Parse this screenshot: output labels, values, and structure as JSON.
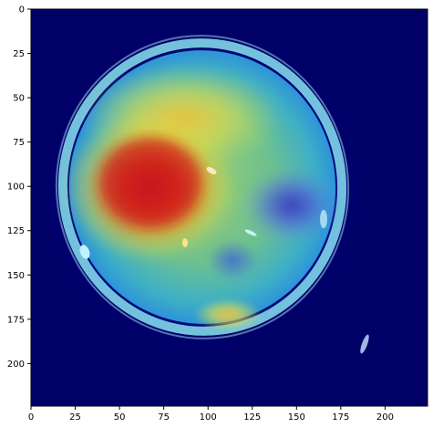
{
  "chart_data": {
    "type": "heatmap",
    "title": "",
    "xlabel": "",
    "ylabel": "",
    "xlim": [
      0,
      224
    ],
    "ylim": [
      224,
      0
    ],
    "x_ticks": [
      "0",
      "25",
      "50",
      "75",
      "100",
      "125",
      "150",
      "175",
      "200"
    ],
    "y_ticks": [
      "0",
      "25",
      "50",
      "75",
      "100",
      "125",
      "150",
      "175",
      "200"
    ],
    "grid": false,
    "colormap": "jet",
    "background_color": "#000066",
    "hotspots": [
      {
        "x": 78,
        "y": 97,
        "intensity": 1.0
      },
      {
        "x": 60,
        "y": 110,
        "intensity": 0.9
      },
      {
        "x": 55,
        "y": 160,
        "intensity": 0.6
      },
      {
        "x": 112,
        "y": 178,
        "intensity": 0.7
      },
      {
        "x": 95,
        "y": 60,
        "intensity": 0.5
      }
    ],
    "cold_spots": [
      {
        "x": 148,
        "y": 112,
        "intensity": 0.2
      }
    ]
  }
}
